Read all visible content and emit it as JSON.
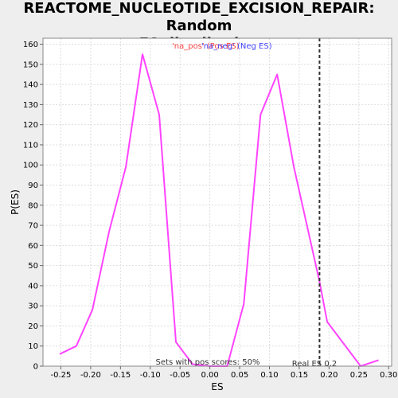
{
  "chart_data": {
    "type": "line",
    "title_line1": "REACTOME_NUCLEOTIDE_EXCISION_REPAIR: Random",
    "title_line2": "ES distribution",
    "xlabel": "ES",
    "ylabel": "P(ES)",
    "xlim": [
      -0.28,
      0.305
    ],
    "ylim": [
      0,
      163
    ],
    "x_ticks": [
      -0.25,
      -0.2,
      -0.15,
      -0.1,
      -0.05,
      0.0,
      0.05,
      0.1,
      0.15,
      0.2,
      0.25,
      0.3
    ],
    "x_tick_labels": [
      "-0.25",
      "-0.20",
      "-0.15",
      "-0.10",
      "-0.05",
      "0.00",
      "0.05",
      "0.10",
      "0.15",
      "0.20",
      "0.25",
      "0.30"
    ],
    "y_ticks": [
      0,
      10,
      20,
      30,
      40,
      50,
      60,
      70,
      80,
      90,
      100,
      110,
      120,
      130,
      140,
      150,
      160
    ],
    "grid": true,
    "series": [
      {
        "color": "#ff44ff",
        "x": [
          -0.252,
          -0.224,
          -0.197,
          -0.169,
          -0.141,
          -0.113,
          -0.085,
          -0.057,
          -0.029,
          0.0,
          0.029,
          0.057,
          0.085,
          0.113,
          0.141,
          0.184,
          0.197,
          0.253,
          0.283
        ],
        "y": [
          6,
          10,
          28,
          67,
          99,
          155,
          125,
          12,
          1,
          0,
          0,
          31,
          125,
          145,
          99,
          42,
          22,
          0,
          3
        ]
      }
    ],
    "real_es": {
      "x": 0.184,
      "label": "Real ES 0.2",
      "color": "#333333"
    },
    "legend": {
      "placement": "top-center",
      "pos_label": "'na_pos' (Pos ES)",
      "pos_color": "#ff4444",
      "neg_label": "'na_neg' (Neg ES)",
      "neg_color": "#4444ff"
    },
    "annotation": "Sets with pos scores: 50%"
  }
}
